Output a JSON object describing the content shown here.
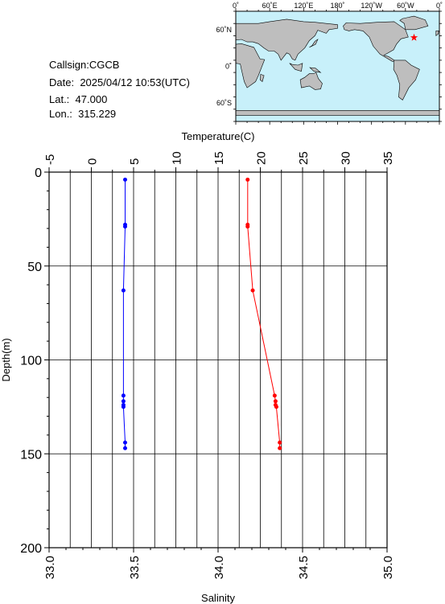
{
  "station": {
    "callsign_label": "Callsign:",
    "callsign": "CGCB",
    "date_label": "Date:",
    "date": "2025/04/12 10:53(UTC)",
    "lat_label": "Lat.:",
    "lat": "47.000",
    "lon_label": "Lon.:",
    "lon": "315.229"
  },
  "map": {
    "lon_labels": [
      "0˚",
      "60˚E",
      "120˚E",
      "180˚",
      "120˚W",
      "60˚W",
      "0˚"
    ],
    "lat_labels": [
      "60˚N",
      "0˚",
      "60˚S"
    ],
    "marker": {
      "lon": 315.229,
      "lat": 47.0
    },
    "colors": {
      "ocean": "#c8f0fa",
      "land": "#bebebe",
      "marker": "#ff0000"
    }
  },
  "chart_data": {
    "type": "line",
    "y_axis": {
      "label": "Depth(m)",
      "range": [
        0,
        200
      ],
      "ticks": [
        "0",
        "50",
        "100",
        "150",
        "200"
      ],
      "inverted": true
    },
    "top_axis": {
      "label": "Temperature(C)",
      "range": [
        -5,
        35
      ],
      "ticks": [
        "-5",
        "0",
        "5",
        "10",
        "15",
        "20",
        "25",
        "30",
        "35"
      ]
    },
    "bottom_axis": {
      "label": "Salinity",
      "range": [
        33.0,
        35.0
      ],
      "ticks": [
        "33.0",
        "33.5",
        "34.0",
        "34.5",
        "35.0"
      ]
    },
    "grid": true,
    "series": [
      {
        "axis": "temperature",
        "color": "#ff0000",
        "points": [
          [
            18.5,
            4
          ],
          [
            18.5,
            28
          ],
          [
            18.5,
            29
          ],
          [
            19.1,
            63
          ],
          [
            21.7,
            119
          ],
          [
            21.8,
            122
          ],
          [
            21.8,
            124
          ],
          [
            21.9,
            125
          ],
          [
            22.3,
            144
          ],
          [
            22.3,
            147
          ]
        ]
      },
      {
        "axis": "salinity",
        "color": "#0000ff",
        "points": [
          [
            33.45,
            4
          ],
          [
            33.45,
            28
          ],
          [
            33.45,
            29
          ],
          [
            33.44,
            63
          ],
          [
            33.44,
            119
          ],
          [
            33.44,
            122
          ],
          [
            33.44,
            124
          ],
          [
            33.44,
            125
          ],
          [
            33.45,
            144
          ],
          [
            33.45,
            147
          ]
        ]
      }
    ]
  }
}
